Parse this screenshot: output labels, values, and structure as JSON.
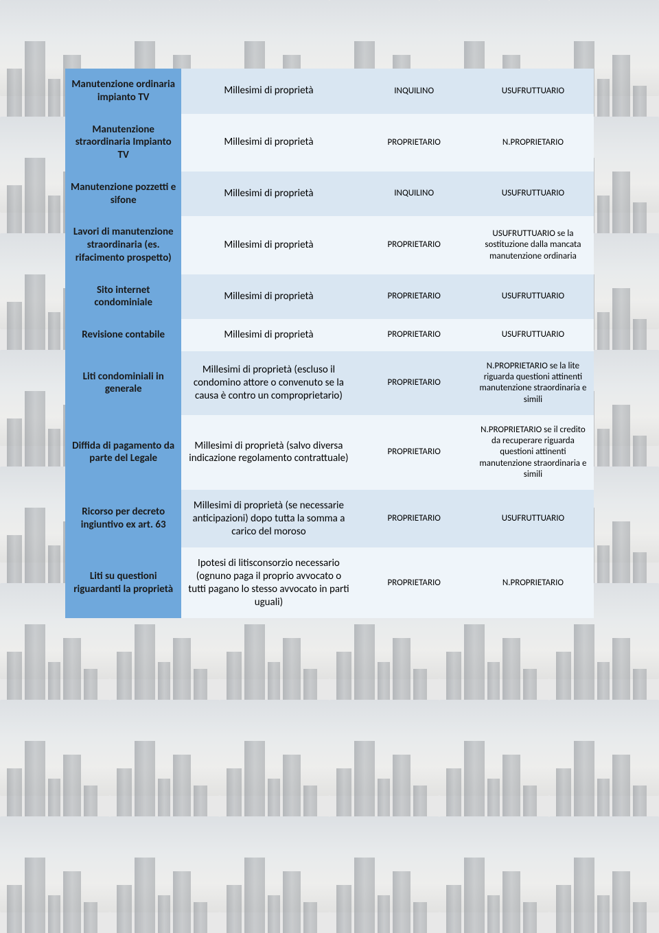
{
  "colors": {
    "header_blue": "#6fa8dc",
    "row_alt_a": "#d9e6f2",
    "row_alt_b": "#eff5fa",
    "text": "#1a1a1a"
  },
  "table": {
    "col_widths_pct": [
      22,
      33,
      22,
      23
    ],
    "rows": [
      {
        "header": "Manutenzione ordinaria impianto TV",
        "c2": "Millesimi di proprietà",
        "c3": "INQUILINO",
        "c4": "USUFRUTTUARIO",
        "band": "a"
      },
      {
        "header": "Manutenzione straordinaria Impianto TV",
        "c2": "Millesimi di proprietà",
        "c3": "PROPRIETARIO",
        "c4": "N.PROPRIETARIO",
        "band": "b"
      },
      {
        "header": "Manutenzione pozzetti e sifone",
        "c2": "Millesimi di proprietà",
        "c3": "INQUILINO",
        "c4": "USUFRUTTUARIO",
        "band": "a"
      },
      {
        "header": "Lavori di manutenzione straordinaria (es. rifacimento prospetto)",
        "c2": "Millesimi di proprietà",
        "c3": "PROPRIETARIO",
        "c4": "USUFRUTTUARIO se la sostituzione dalla mancata manutenzione ordinaria",
        "band": "b"
      },
      {
        "header": "Sito internet condominiale",
        "c2": "Millesimi di proprietà",
        "c3": "PROPRIETARIO",
        "c4": "USUFRUTTUARIO",
        "band": "a"
      },
      {
        "header": "Revisione contabile",
        "c2": "Millesimi di proprietà",
        "c3": "PROPRIETARIO",
        "c4": "USUFRUTTUARIO",
        "band": "b"
      },
      {
        "header": "Liti condominiali in generale",
        "c2": "Millesimi di proprietà (escluso il condomino attore o convenuto se la causa è contro un comproprietario)",
        "c3": "PROPRIETARIO",
        "c4": "N.PROPRIETARIO se la lite riguarda questioni attinenti manutenzione straordinaria e simili",
        "band": "a"
      },
      {
        "header": "Diffida di pagamento da parte del Legale",
        "c2": "Millesimi di proprietà (salvo diversa indicazione regolamento contrattuale)",
        "c3": "PROPRIETARIO",
        "c4": "N.PROPRIETARIO se il credito da recuperare riguarda questioni attinenti manutenzione straordinaria e simili",
        "band": "b"
      },
      {
        "header": "Ricorso per decreto ingiuntivo ex art. 63",
        "c2": "Millesimi di proprietà (se necessarie anticipazioni) dopo tutta la somma a carico del moroso",
        "c3": "PROPRIETARIO",
        "c4": "USUFRUTTUARIO",
        "band": "a"
      },
      {
        "header": "Liti su questioni riguardanti la proprietà",
        "c2": "Ipotesi di litisconsorzio necessario (ognuno paga il proprio avvocato o tutti pagano lo stesso avvocato in parti uguali)",
        "c3": "PROPRIETARIO",
        "c4": "N.PROPRIETARIO",
        "band": "b"
      }
    ]
  }
}
